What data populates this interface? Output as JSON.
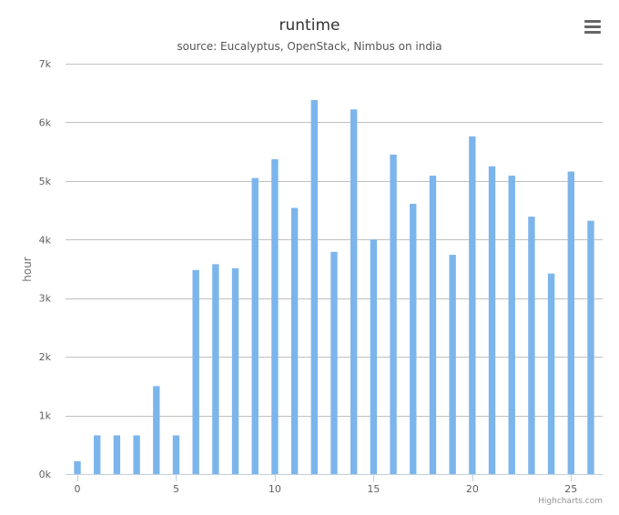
{
  "chart_data": {
    "type": "bar",
    "title": "runtime",
    "subtitle": "source: Eucalyptus, OpenStack, Nimbus on india",
    "xlabel": "",
    "ylabel": "hour",
    "x": [
      0,
      1,
      2,
      3,
      4,
      5,
      6,
      7,
      8,
      9,
      10,
      11,
      12,
      13,
      14,
      15,
      16,
      17,
      18,
      19,
      20,
      21,
      22,
      23,
      24,
      25,
      26
    ],
    "values": [
      220,
      660,
      660,
      660,
      1500,
      660,
      3480,
      3580,
      3510,
      5050,
      5370,
      4540,
      6380,
      3790,
      6220,
      4000,
      5450,
      4610,
      5090,
      3740,
      5760,
      5250,
      5090,
      4390,
      3420,
      5160,
      4320
    ],
    "xlim": [
      -0.6,
      26.6
    ],
    "ylim": [
      0,
      7000
    ],
    "x_ticks": [
      0,
      5,
      10,
      15,
      20,
      25
    ],
    "x_tick_labels": [
      "0",
      "5",
      "10",
      "15",
      "20",
      "25"
    ],
    "y_ticks": [
      0,
      1000,
      2000,
      3000,
      4000,
      5000,
      6000,
      7000
    ],
    "y_tick_labels": [
      "0k",
      "1k",
      "2k",
      "3k",
      "4k",
      "5k",
      "6k",
      "7k"
    ],
    "grid": true,
    "legend": "none",
    "bar_color": "#7cb5ec",
    "grid_color": "#c0c0c0",
    "axis_color": "#c0d0e0"
  },
  "credits": "Highcharts.com",
  "menu_icon": "hamburger-menu-icon"
}
